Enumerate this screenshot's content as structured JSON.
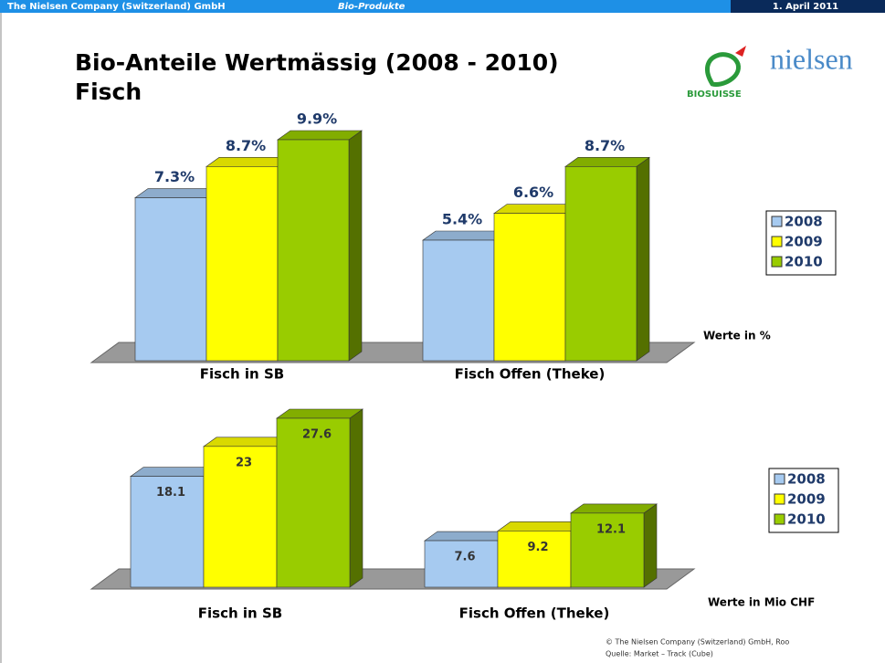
{
  "header": {
    "company": "The Nielsen Company (Switzerland) GmbH",
    "section": "Bio-Produkte",
    "date": "1. April 2011"
  },
  "logos": {
    "nielsen": "nielsen",
    "biosuisse": "BIOSUISSE"
  },
  "title": [
    "Bio-Anteile Wertmässig (2008 - 2010)",
    "Fisch"
  ],
  "footer": [
    "© The Nielsen Company (Switzerland) GmbH, Roo",
    "Quelle: Market – Track (Cube)"
  ],
  "chart_data": [
    {
      "type": "bar3d",
      "annotation": "Werte in %",
      "categories": [
        "Fisch in SB",
        "Fisch Offen (Theke)"
      ],
      "series": [
        {
          "name": "2008",
          "color": "#a6caf0",
          "values": [
            7.3,
            5.4
          ],
          "value_labels": [
            "7.3%",
            "5.4%"
          ]
        },
        {
          "name": "2009",
          "color": "#ffff00",
          "values": [
            8.7,
            6.6
          ],
          "value_labels": [
            "8.7%",
            "6.6%"
          ]
        },
        {
          "name": "2010",
          "color": "#99cc00",
          "values": [
            9.9,
            8.7
          ],
          "value_labels": [
            "9.9%",
            "8.7%"
          ]
        }
      ]
    },
    {
      "type": "bar3d",
      "annotation": "Werte in Mio CHF",
      "categories": [
        "Fisch in SB",
        "Fisch Offen (Theke)"
      ],
      "series": [
        {
          "name": "2008",
          "color": "#a6caf0",
          "values": [
            18.1,
            7.6
          ]
        },
        {
          "name": "2009",
          "color": "#ffff00",
          "values": [
            23,
            9.2
          ]
        },
        {
          "name": "2010",
          "color": "#99cc00",
          "values": [
            27.6,
            12.1
          ]
        }
      ]
    }
  ]
}
